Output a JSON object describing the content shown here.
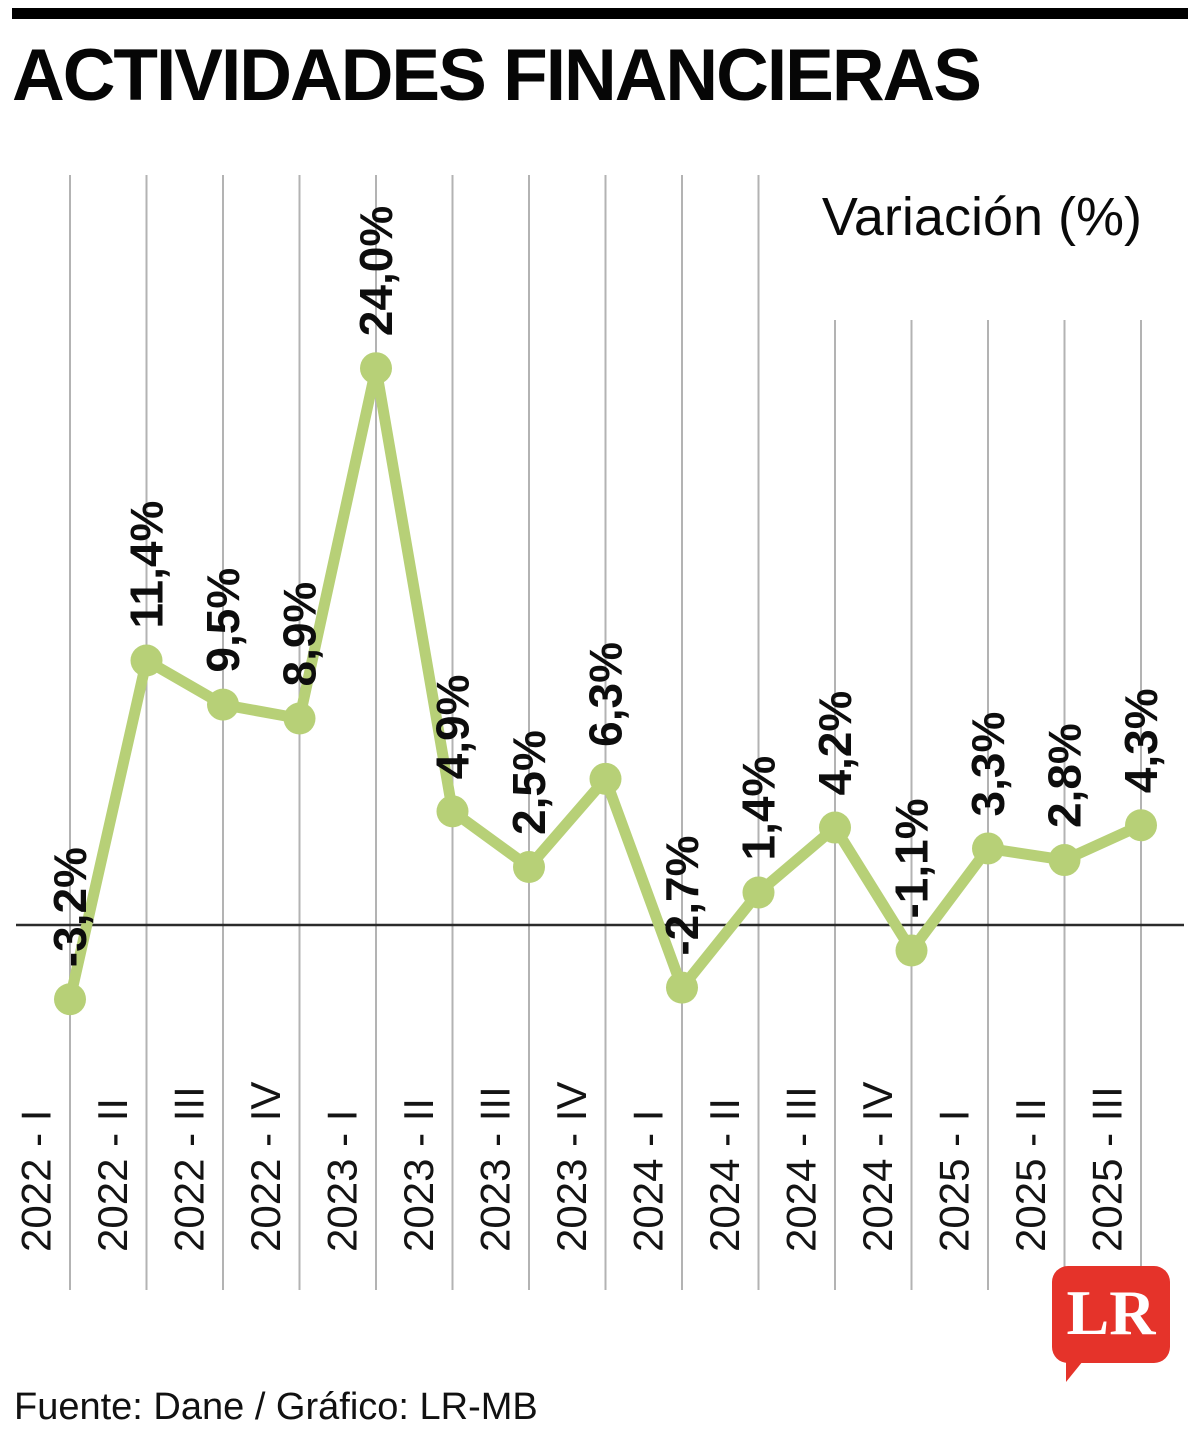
{
  "title": "ACTIVIDADES FINANCIERAS",
  "chart_data": {
    "type": "line",
    "title": "ACTIVIDADES FINANCIERAS",
    "unit_label": "Variación (%)",
    "categories": [
      "2022 - I",
      "2022 - II",
      "2022 - III",
      "2022 - IV",
      "2023 - I",
      "2023 - II",
      "2023 - III",
      "2023 - IV",
      "2024 - I",
      "2024 - II",
      "2024 - III",
      "2024 - IV",
      "2025 - I",
      "2025 - II",
      "2025 - III"
    ],
    "values": [
      -3.2,
      11.4,
      9.5,
      8.9,
      24.0,
      4.9,
      2.5,
      6.3,
      -2.7,
      1.4,
      4.2,
      -1.1,
      3.3,
      2.8,
      4.3
    ],
    "labels": [
      "-3,2%",
      "11,4%",
      "9,5%",
      "8,9%",
      "24,0%",
      "4,9%",
      "2,5%",
      "6,3%",
      "-2,7%",
      "1,4%",
      "4,2%",
      "-1,1%",
      "3,3%",
      "2,8%",
      "4,3%"
    ],
    "ylim": [
      -6,
      26
    ],
    "grid": "vertical-only",
    "zero_line": true,
    "legend": "none",
    "label_orientation": "rotated-90",
    "line_color": "#b7d077",
    "point_color": "#b7d077",
    "grid_color": "#b3b3b3",
    "zero_line_color": "#2b2b2b"
  },
  "footer": {
    "source": "Fuente: Dane / Gráfico: LR-MB"
  },
  "logo": {
    "text": "LR",
    "bg_color": "#e5332a"
  }
}
